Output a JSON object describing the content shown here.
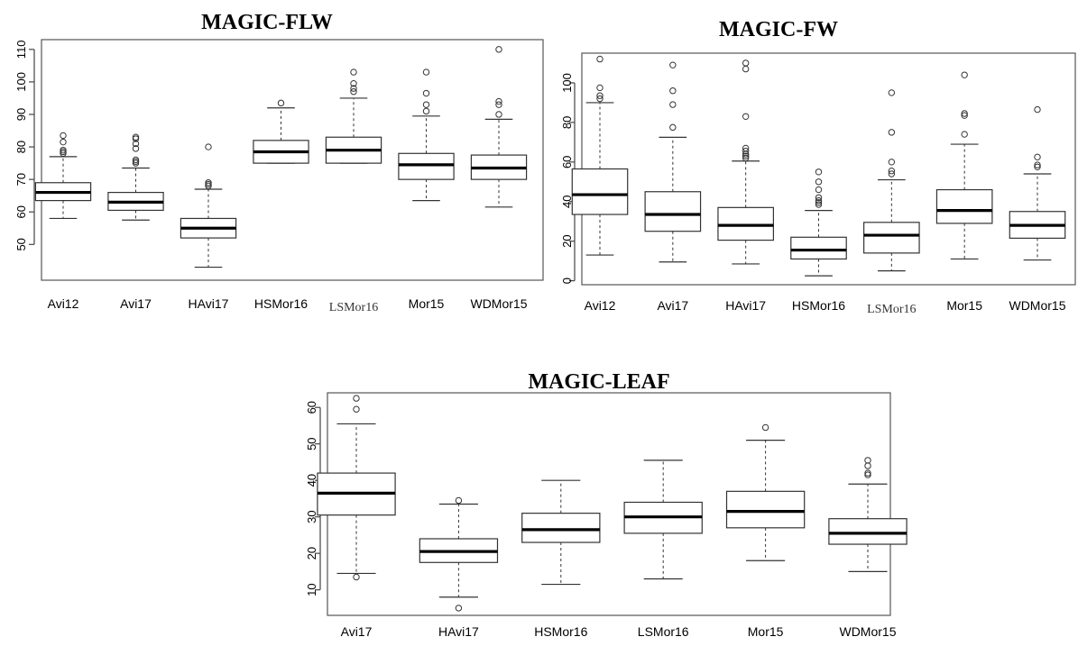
{
  "chart_data": [
    {
      "type": "boxplot",
      "title": "MAGIC-FLW",
      "categories": [
        "Avi12",
        "Avi17",
        "HAvi17",
        "HSMor16",
        "LSMor16",
        "Mor15",
        "WDMor15"
      ],
      "yticks": [
        50,
        60,
        70,
        80,
        90,
        100,
        110
      ],
      "ylim": [
        39,
        113
      ],
      "boxes": [
        {
          "whislo": 58,
          "q1": 63.5,
          "med": 66,
          "q3": 69,
          "whishi": 77,
          "fliers": [
            78,
            78.5,
            79,
            81.5,
            83.5
          ]
        },
        {
          "whislo": 57.5,
          "q1": 60.5,
          "med": 63,
          "q3": 66,
          "whishi": 73.5,
          "fliers": [
            75,
            75.5,
            76,
            79.5,
            81,
            82.5,
            83
          ]
        },
        {
          "whislo": 43,
          "q1": 52,
          "med": 55,
          "q3": 58,
          "whishi": 67,
          "fliers": [
            68,
            68.5,
            69,
            80
          ]
        },
        {
          "whislo": 75,
          "q1": 75,
          "med": 78.5,
          "q3": 82,
          "whishi": 92,
          "fliers": [
            93.5
          ]
        },
        {
          "whislo": 75,
          "q1": 75,
          "med": 79,
          "q3": 83,
          "whishi": 95,
          "fliers": [
            97,
            98,
            99.5,
            103
          ]
        },
        {
          "whislo": 63.5,
          "q1": 70,
          "med": 74.5,
          "q3": 78,
          "whishi": 89.5,
          "fliers": [
            91,
            93,
            96.5,
            103
          ]
        },
        {
          "whislo": 61.5,
          "q1": 70,
          "med": 73.5,
          "q3": 77.5,
          "whishi": 88.5,
          "fliers": [
            90,
            93,
            94,
            110
          ]
        }
      ]
    },
    {
      "type": "boxplot",
      "title": "MAGIC-FW",
      "categories": [
        "Avi12",
        "Avi17",
        "HAvi17",
        "HSMor16",
        "LSMor16",
        "Mor15",
        "WDMor15"
      ],
      "yticks": [
        0,
        20,
        40,
        60,
        80,
        100
      ],
      "ylim": [
        -2,
        115
      ],
      "boxes": [
        {
          "whislo": 13,
          "q1": 33.5,
          "med": 43.5,
          "q3": 56.5,
          "whishi": 90,
          "fliers": [
            92,
            93.5,
            97.5,
            112
          ]
        },
        {
          "whislo": 9.5,
          "q1": 25,
          "med": 33.5,
          "q3": 45,
          "whishi": 72.5,
          "fliers": [
            77.5,
            89,
            96,
            109
          ]
        },
        {
          "whislo": 8.5,
          "q1": 20.5,
          "med": 28,
          "q3": 37,
          "whishi": 60.5,
          "fliers": [
            62,
            63,
            64,
            65.5,
            67,
            83,
            107,
            110
          ]
        },
        {
          "whislo": 2.5,
          "q1": 11,
          "med": 15.5,
          "q3": 22,
          "whishi": 35.5,
          "fliers": [
            38.5,
            39.5,
            40.5,
            42,
            46,
            50,
            55
          ]
        },
        {
          "whislo": 5,
          "q1": 14,
          "med": 23,
          "q3": 29.5,
          "whishi": 51,
          "fliers": [
            54,
            55.5,
            60,
            75,
            95
          ]
        },
        {
          "whislo": 11,
          "q1": 29,
          "med": 35.5,
          "q3": 46,
          "whishi": 69,
          "fliers": [
            74,
            83.5,
            84.5,
            104
          ]
        },
        {
          "whislo": 10.5,
          "q1": 21.5,
          "med": 28,
          "q3": 35,
          "whishi": 54,
          "fliers": [
            57.5,
            58.5,
            62.5,
            86.5
          ]
        }
      ]
    },
    {
      "type": "boxplot",
      "title": "MAGIC-LEAF",
      "categories": [
        "Avi17",
        "HAvi17",
        "HSMor16",
        "LSMor16",
        "Mor15",
        "WDMor15"
      ],
      "yticks": [
        10,
        20,
        30,
        40,
        50,
        60
      ],
      "ylim": [
        3,
        64
      ],
      "boxes": [
        {
          "whislo": 14.5,
          "q1": 30.5,
          "med": 36.5,
          "q3": 42,
          "whishi": 55.5,
          "fliers": [
            13.5,
            59.5,
            62.5
          ]
        },
        {
          "whislo": 8,
          "q1": 17.5,
          "med": 20.5,
          "q3": 24,
          "whishi": 33.5,
          "fliers": [
            5,
            34.5
          ]
        },
        {
          "whislo": 11.5,
          "q1": 23,
          "med": 26.5,
          "q3": 31,
          "whishi": 40,
          "fliers": []
        },
        {
          "whislo": 13,
          "q1": 25.5,
          "med": 30,
          "q3": 34,
          "whishi": 45.5,
          "fliers": []
        },
        {
          "whislo": 18,
          "q1": 27,
          "med": 31.5,
          "q3": 37,
          "whishi": 51,
          "fliers": [
            54.5
          ]
        },
        {
          "whislo": 15,
          "q1": 22.5,
          "med": 25.5,
          "q3": 29.5,
          "whishi": 39,
          "fliers": [
            41.5,
            42,
            44,
            45.5
          ]
        }
      ]
    }
  ]
}
